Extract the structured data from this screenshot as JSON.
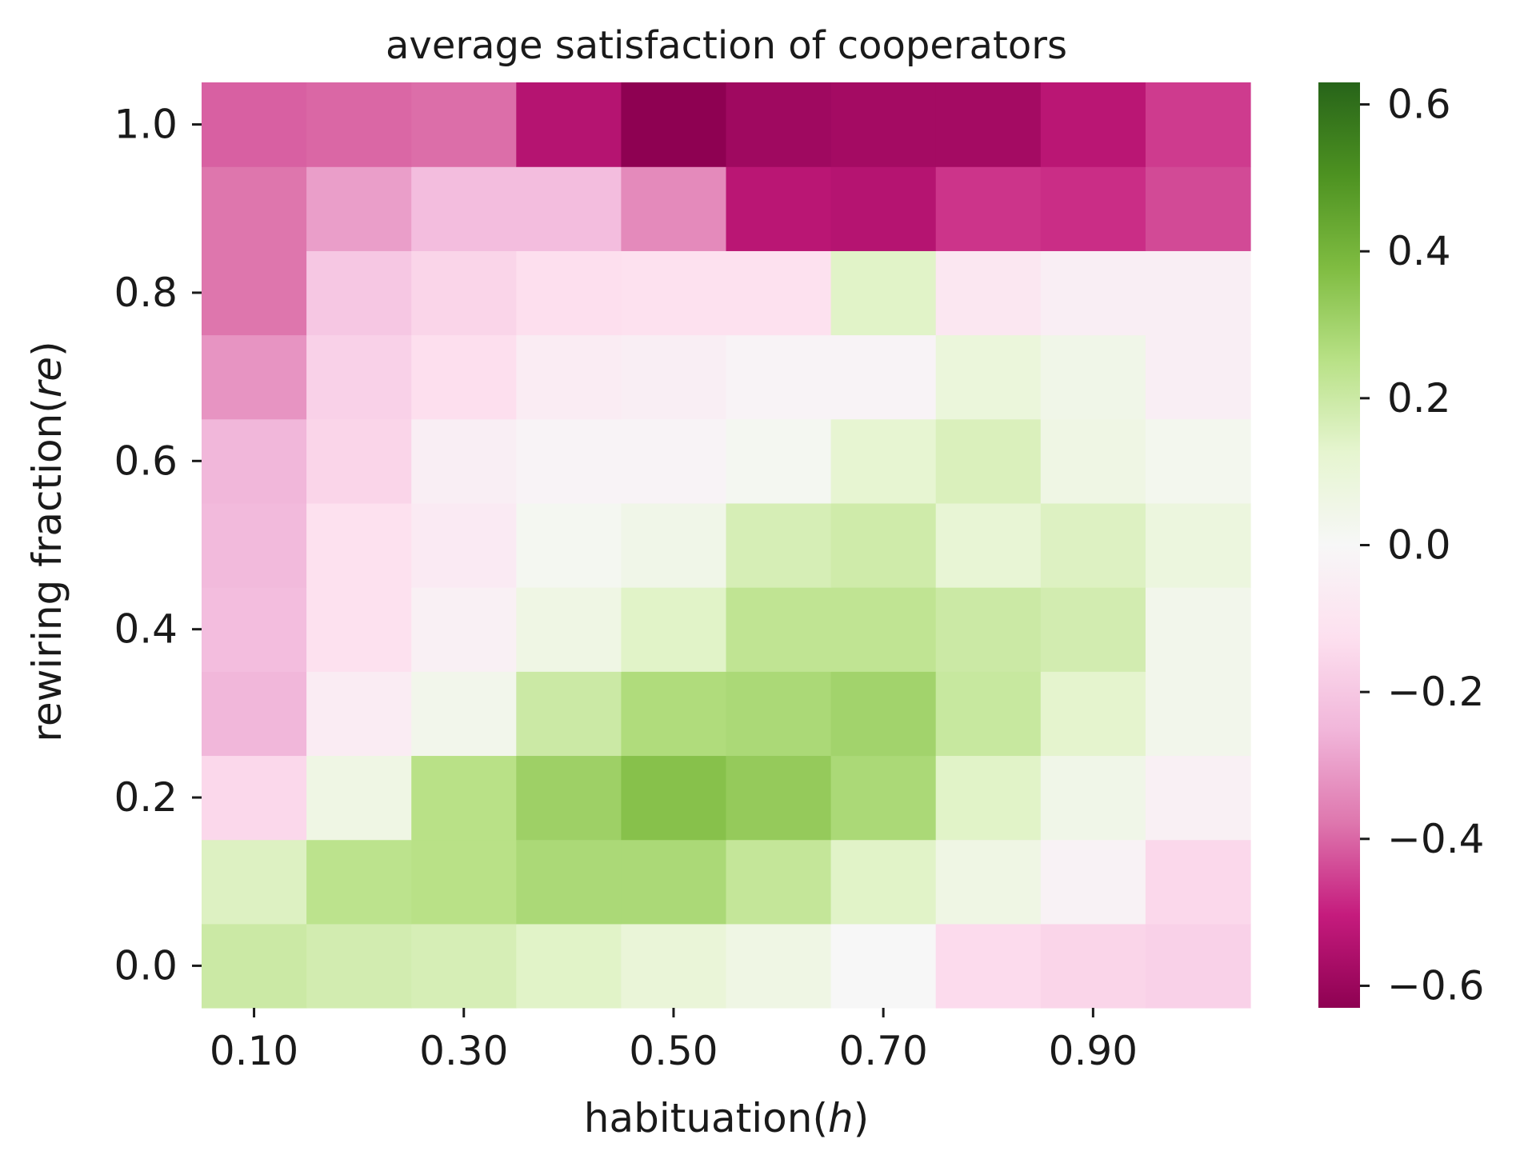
{
  "chart_data": {
    "type": "heatmap",
    "title": "average satisfaction of cooperators",
    "xlabel_text": "habituation(",
    "xlabel_var": "h",
    "xlabel_close": ")",
    "ylabel_text": "rewiring fraction(",
    "ylabel_var": "re",
    "ylabel_close": ")",
    "x_values": [
      0.1,
      0.2,
      0.3,
      0.4,
      0.5,
      0.6,
      0.7,
      0.8,
      0.9,
      1.0
    ],
    "y_values": [
      0.0,
      0.1,
      0.2,
      0.3,
      0.4,
      0.5,
      0.6,
      0.7,
      0.8,
      0.9,
      1.0
    ],
    "x_tick_labels": [
      "0.10",
      "0.30",
      "0.50",
      "0.70",
      "0.90"
    ],
    "x_tick_values": [
      0.1,
      0.3,
      0.5,
      0.7,
      0.9
    ],
    "y_tick_labels": [
      "0.0",
      "0.2",
      "0.4",
      "0.6",
      "0.8",
      "1.0"
    ],
    "y_tick_values": [
      0.0,
      0.2,
      0.4,
      0.6,
      0.8,
      1.0
    ],
    "colorbar": {
      "colormap": "PiYG",
      "vmin": -0.63,
      "vmax": 0.63,
      "tick_values": [
        -0.6,
        -0.4,
        -0.2,
        0.0,
        0.2,
        0.4,
        0.6
      ],
      "tick_labels": [
        "−0.6",
        "−0.4",
        "−0.2",
        "0.0",
        "0.2",
        "0.4",
        "0.6"
      ]
    },
    "grid": false,
    "values": [
      [
        0.2,
        0.18,
        0.17,
        0.14,
        0.1,
        0.06,
        0.0,
        -0.14,
        -0.16,
        -0.17
      ],
      [
        0.15,
        0.24,
        0.25,
        0.28,
        0.28,
        0.22,
        0.14,
        0.06,
        -0.03,
        -0.15
      ],
      [
        -0.15,
        0.06,
        0.25,
        0.31,
        0.36,
        0.33,
        0.28,
        0.14,
        0.05,
        -0.04
      ],
      [
        -0.25,
        -0.06,
        0.04,
        0.2,
        0.27,
        0.28,
        0.3,
        0.21,
        0.13,
        0.04
      ],
      [
        -0.23,
        -0.12,
        -0.04,
        0.06,
        0.14,
        0.23,
        0.23,
        0.2,
        0.18,
        0.04
      ],
      [
        -0.24,
        -0.12,
        -0.07,
        0.02,
        0.05,
        0.17,
        0.19,
        0.11,
        0.15,
        0.08
      ],
      [
        -0.25,
        -0.16,
        -0.05,
        -0.02,
        -0.02,
        0.02,
        0.12,
        0.16,
        0.06,
        0.03
      ],
      [
        -0.32,
        -0.17,
        -0.13,
        -0.06,
        -0.05,
        -0.02,
        -0.02,
        0.09,
        0.05,
        -0.05
      ],
      [
        -0.38,
        -0.2,
        -0.16,
        -0.13,
        -0.12,
        -0.12,
        0.14,
        -0.09,
        -0.05,
        -0.05
      ],
      [
        -0.38,
        -0.3,
        -0.23,
        -0.23,
        -0.34,
        -0.53,
        -0.54,
        -0.47,
        -0.48,
        -0.44
      ],
      [
        -0.41,
        -0.4,
        -0.39,
        -0.54,
        -0.63,
        -0.59,
        -0.58,
        -0.58,
        -0.53,
        -0.46
      ]
    ]
  }
}
